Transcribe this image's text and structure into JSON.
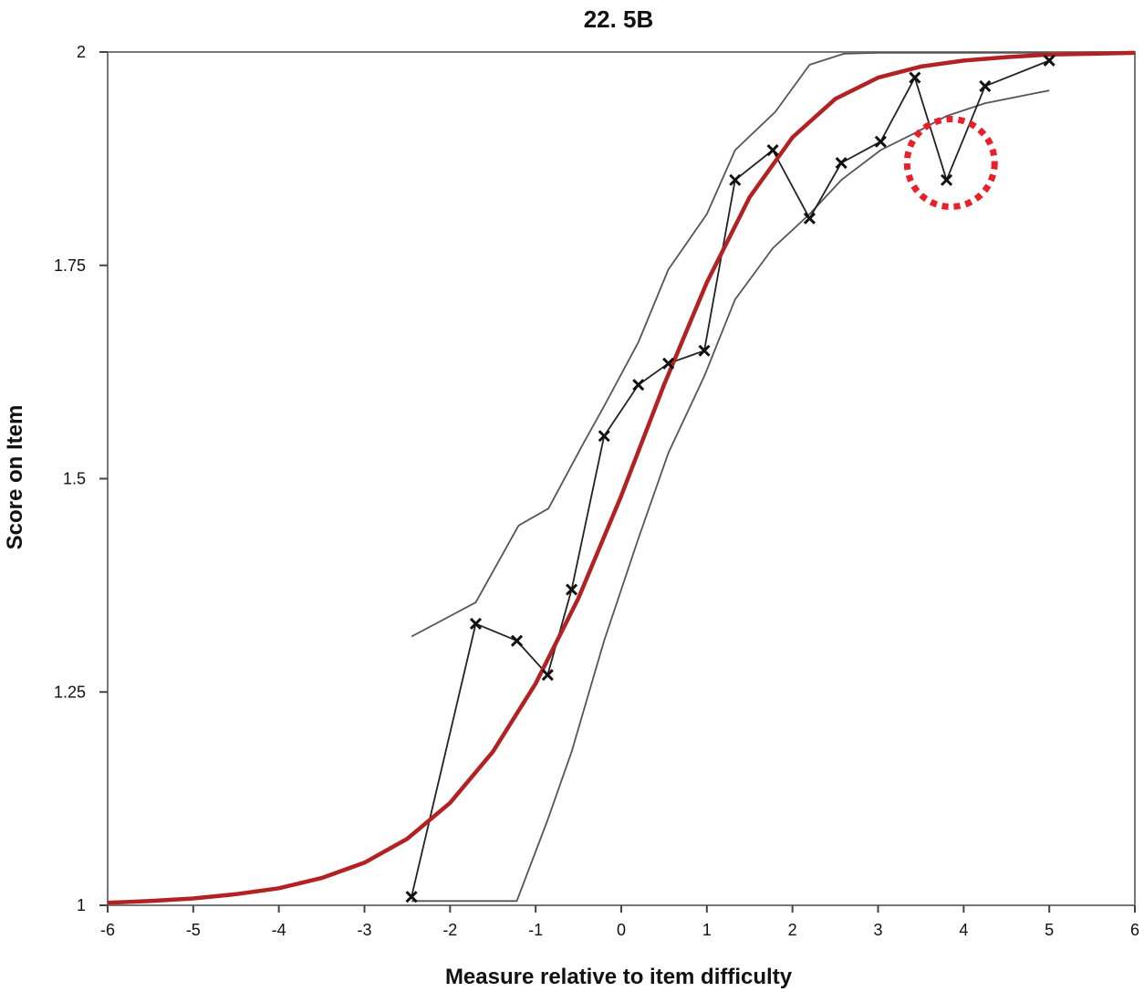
{
  "chart_data": {
    "type": "line",
    "title": "22. 5B",
    "xlabel": "Measure relative to item difficulty",
    "ylabel": "Score on Item",
    "xlim": [
      -6,
      6
    ],
    "ylim": [
      1,
      2
    ],
    "x_ticks": [
      "-6",
      "-5",
      "-4",
      "-3",
      "-2",
      "-1",
      "0",
      "1",
      "2",
      "3",
      "4",
      "5",
      "6"
    ],
    "y_ticks": [
      "1",
      "1.25",
      "1.5",
      "1.75",
      "2"
    ],
    "grid": false,
    "legend": "none",
    "colors": {
      "expected": "#b22222",
      "observed": "#222222",
      "bounds": "#555555",
      "highlight": "#e8202a"
    },
    "series": [
      {
        "style": "expected-curve",
        "x": [
          -6,
          -5.5,
          -5,
          -4.5,
          -4,
          -3.5,
          -3,
          -2.5,
          -2,
          -1.5,
          -1,
          -0.5,
          0,
          0.5,
          1,
          1.5,
          2,
          2.5,
          3,
          3.5,
          4,
          4.5,
          5,
          5.5,
          6
        ],
        "y": [
          1.003,
          1.005,
          1.008,
          1.013,
          1.02,
          1.032,
          1.05,
          1.078,
          1.12,
          1.18,
          1.26,
          1.36,
          1.48,
          1.61,
          1.73,
          1.83,
          1.9,
          1.945,
          1.97,
          1.983,
          1.99,
          1.994,
          1.997,
          1.998,
          1.999
        ]
      },
      {
        "style": "observed",
        "marker": "x",
        "x": [
          -2.45,
          -1.7,
          -1.22,
          -0.86,
          -0.58,
          -0.2,
          0.2,
          0.55,
          0.97,
          1.33,
          1.77,
          2.2,
          2.57,
          3.03,
          3.43,
          3.8,
          4.25,
          5.0
        ],
        "y": [
          1.01,
          1.33,
          1.31,
          1.27,
          1.37,
          1.55,
          1.61,
          1.635,
          1.65,
          1.85,
          1.885,
          1.805,
          1.87,
          1.895,
          1.97,
          1.85,
          1.96,
          1.99
        ]
      },
      {
        "style": "upper-bound",
        "x": [
          -2.45,
          -1.7,
          -1.2,
          -0.85,
          -0.45,
          -0.2,
          0.2,
          0.55,
          1.0,
          1.33,
          1.8,
          2.2,
          2.6,
          3.0,
          3.5,
          4.0,
          4.5,
          5.0
        ],
        "y": [
          1.315,
          1.355,
          1.445,
          1.465,
          1.54,
          1.585,
          1.66,
          1.745,
          1.81,
          1.885,
          1.93,
          1.985,
          1.998,
          1.999,
          1.999,
          1.999,
          1.999,
          1.999
        ]
      },
      {
        "style": "lower-bound",
        "x": [
          -2.45,
          -2.0,
          -1.22,
          -0.86,
          -0.58,
          -0.2,
          0.2,
          0.55,
          0.97,
          1.33,
          1.77,
          2.2,
          2.57,
          3.03,
          3.43,
          3.8,
          4.25,
          5.0
        ],
        "y": [
          1.005,
          1.005,
          1.005,
          1.1,
          1.18,
          1.31,
          1.43,
          1.53,
          1.62,
          1.71,
          1.77,
          1.81,
          1.85,
          1.885,
          1.905,
          1.925,
          1.94,
          1.955
        ]
      }
    ],
    "annotations": [
      {
        "type": "dotted-circle",
        "x": 3.85,
        "y": 1.87
      }
    ]
  }
}
